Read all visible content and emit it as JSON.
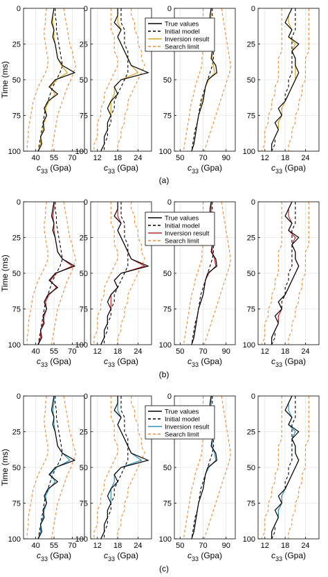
{
  "chart_data": {
    "type": "line",
    "ylabel": "Time (ms)",
    "xlabel_main": "c",
    "xlabel_sub": "33",
    "xlabel_unit": " (Gpa)",
    "ylim": [
      100,
      0
    ],
    "yticks": [
      0,
      25,
      50,
      75,
      100
    ],
    "grid": true,
    "legend_entries": [
      "True values",
      "Initial model",
      "Inversion result",
      "Search limit"
    ],
    "colors": {
      "true_values": "#000000",
      "initial_model": "#000000",
      "search_limit": "#f08a32",
      "axis": "#000000",
      "grid": "#e6e6e6"
    },
    "time": [
      0,
      5,
      10,
      15,
      20,
      25,
      30,
      35,
      40,
      45,
      50,
      55,
      60,
      65,
      70,
      75,
      80,
      85,
      90,
      95,
      100
    ],
    "columns": [
      {
        "xlim": [
          30,
          80
        ],
        "xticks": [
          40,
          55,
          70
        ],
        "true_values": [
          55,
          54,
          53,
          55,
          54,
          56,
          57,
          58,
          62,
          72,
          56,
          51,
          58,
          50,
          47,
          49,
          46,
          47,
          44,
          45,
          42
        ],
        "initial_model": [
          56,
          56,
          57,
          57,
          58,
          59,
          60,
          61,
          62,
          60,
          57,
          54,
          52,
          50,
          48,
          47,
          46,
          45,
          44,
          43,
          42
        ],
        "search_lower": [
          49,
          48,
          48,
          47,
          47,
          48,
          49,
          50,
          50,
          48,
          45,
          42,
          40,
          38,
          37,
          36,
          35,
          34,
          34,
          33,
          33
        ],
        "search_upper": [
          63,
          64,
          65,
          66,
          67,
          68,
          70,
          71,
          73,
          71,
          69,
          66,
          64,
          62,
          60,
          58,
          57,
          56,
          55,
          54,
          53
        ]
      },
      {
        "xlim": [
          10,
          28
        ],
        "xticks": [
          12,
          18,
          24
        ],
        "true_values": [
          18,
          18,
          17,
          19,
          18,
          19,
          20,
          21,
          22,
          27,
          19,
          17,
          18,
          16,
          15,
          16,
          15,
          15,
          14,
          14,
          13
        ],
        "initial_model": [
          19,
          19,
          19,
          20,
          20,
          20,
          21,
          21,
          21,
          21,
          20,
          19,
          18,
          17,
          17,
          16,
          16,
          15,
          15,
          14,
          14
        ],
        "search_lower": [
          16,
          16,
          16,
          16,
          17,
          17,
          17,
          18,
          18,
          17,
          16,
          15,
          14,
          14,
          13,
          13,
          12,
          12,
          12,
          11,
          11
        ],
        "search_upper": [
          22,
          22,
          23,
          23,
          24,
          24,
          25,
          25,
          26,
          25,
          24,
          23,
          22,
          21,
          21,
          20,
          20,
          19,
          19,
          18,
          18
        ]
      },
      {
        "xlim": [
          45,
          98
        ],
        "xticks": [
          50,
          70,
          90
        ],
        "true_values": [
          77,
          76,
          76,
          78,
          77,
          79,
          78,
          77,
          81,
          82,
          74,
          72,
          71,
          70,
          68,
          66,
          65,
          64,
          63,
          62,
          60
        ],
        "initial_model": [
          78,
          78,
          78,
          79,
          79,
          79,
          79,
          79,
          78,
          76,
          74,
          72,
          70,
          68,
          67,
          66,
          65,
          63,
          62,
          61,
          60
        ],
        "search_lower": [
          70,
          70,
          70,
          70,
          70,
          70,
          70,
          69,
          69,
          67,
          65,
          63,
          62,
          60,
          59,
          58,
          57,
          56,
          55,
          54,
          53
        ],
        "search_upper": [
          86,
          87,
          88,
          89,
          90,
          91,
          92,
          93,
          94,
          93,
          91,
          89,
          87,
          85,
          83,
          81,
          79,
          77,
          75,
          73,
          71
        ]
      },
      {
        "xlim": [
          10,
          28
        ],
        "xticks": [
          12,
          18,
          24
        ],
        "true_values": [
          20,
          19,
          18,
          20,
          19,
          22,
          20,
          21,
          21,
          22,
          21,
          20,
          19,
          18,
          16,
          17,
          15,
          16,
          15,
          14,
          14
        ],
        "initial_model": [
          21,
          21,
          21,
          21,
          20,
          20,
          20,
          20,
          20,
          20,
          19,
          19,
          18,
          18,
          17,
          17,
          16,
          16,
          15,
          15,
          14
        ],
        "search_lower": [
          17,
          17,
          17,
          17,
          17,
          17,
          17,
          16,
          16,
          16,
          16,
          15,
          15,
          14,
          14,
          13,
          13,
          12,
          12,
          12,
          11
        ],
        "search_upper": [
          25,
          25,
          25,
          25,
          25,
          25,
          25,
          24,
          24,
          24,
          24,
          23,
          23,
          22,
          22,
          21,
          21,
          20,
          20,
          19,
          19
        ]
      }
    ],
    "panels": [
      {
        "label": "(a)",
        "inversion_color": "#d9a51a",
        "inversion_results": [
          [
            55,
            54,
            54,
            55,
            55,
            56,
            57,
            58,
            61,
            66,
            57,
            52,
            56,
            51,
            48,
            49,
            47,
            46,
            44,
            44,
            42
          ],
          [
            18,
            18,
            18,
            19,
            18,
            19,
            20,
            21,
            22,
            24,
            19,
            17,
            17,
            16,
            16,
            16,
            15,
            15,
            14,
            14,
            13
          ],
          [
            77,
            77,
            77,
            78,
            77,
            78,
            78,
            78,
            79,
            80,
            75,
            72,
            71,
            69,
            68,
            66,
            65,
            64,
            63,
            62,
            60
          ],
          [
            20,
            19,
            19,
            20,
            19,
            21,
            20,
            21,
            21,
            21,
            21,
            20,
            19,
            18,
            17,
            17,
            16,
            16,
            15,
            14,
            14
          ]
        ]
      },
      {
        "label": "(b)",
        "inversion_color": "#c1272d",
        "inversion_results": [
          [
            55,
            55,
            54,
            55,
            55,
            56,
            57,
            58,
            62,
            70,
            57,
            52,
            57,
            51,
            48,
            49,
            47,
            46,
            44,
            44,
            42
          ],
          [
            18,
            18,
            18,
            19,
            18,
            19,
            20,
            21,
            22,
            26,
            19,
            17,
            18,
            16,
            16,
            16,
            15,
            15,
            14,
            14,
            13
          ],
          [
            77,
            77,
            77,
            78,
            77,
            78,
            78,
            78,
            80,
            81,
            75,
            72,
            71,
            70,
            68,
            66,
            65,
            64,
            63,
            62,
            60
          ],
          [
            20,
            19,
            19,
            20,
            19,
            21,
            20,
            21,
            21,
            22,
            21,
            20,
            19,
            18,
            16,
            17,
            16,
            16,
            15,
            14,
            14
          ]
        ]
      },
      {
        "label": "(c)",
        "inversion_color": "#2e8fb8",
        "inversion_results": [
          [
            55,
            55,
            54,
            55,
            55,
            56,
            57,
            58,
            62,
            68,
            57,
            52,
            56,
            51,
            48,
            49,
            47,
            46,
            44,
            44,
            42
          ],
          [
            18,
            18,
            18,
            19,
            18,
            19,
            20,
            21,
            22,
            25,
            19,
            17,
            17,
            16,
            16,
            16,
            15,
            15,
            14,
            14,
            13
          ],
          [
            77,
            77,
            77,
            78,
            77,
            78,
            78,
            78,
            80,
            81,
            75,
            72,
            71,
            70,
            68,
            66,
            65,
            64,
            63,
            62,
            60
          ],
          [
            20,
            19,
            19,
            20,
            19,
            21,
            20,
            21,
            21,
            22,
            21,
            20,
            19,
            18,
            17,
            17,
            16,
            16,
            15,
            14,
            14
          ]
        ]
      }
    ]
  }
}
